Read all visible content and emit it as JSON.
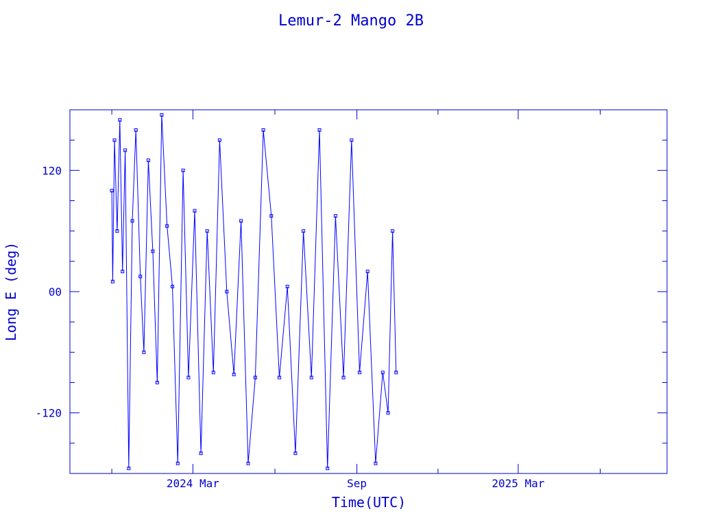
{
  "chart_data": {
    "type": "line",
    "title": "Lemur-2 Mango 2B",
    "xlabel": "Time(UTC)",
    "ylabel": "Long E (deg)",
    "ylim": [
      -180,
      180
    ],
    "xlim": [
      "2023-10-15",
      "2025-08-15"
    ],
    "x_ticks": [
      {
        "date": "2024-03-01",
        "label": "2024 Mar"
      },
      {
        "date": "2024-09-01",
        "label": "Sep"
      },
      {
        "date": "2025-03-01",
        "label": "2025 Mar"
      }
    ],
    "y_ticks": [
      {
        "value": 120,
        "label": "120"
      },
      {
        "value": 0,
        "label": "00"
      },
      {
        "value": -120,
        "label": "-120"
      }
    ],
    "data_range": [
      "2023-12-01",
      "2024-10-15"
    ],
    "marker": "square",
    "grid": false,
    "color": "#0000ff",
    "series": [
      {
        "x": [
          "2023-12-01",
          "2023-12-02",
          "2023-12-04",
          "2023-12-07",
          "2023-12-10",
          "2023-12-13",
          "2023-12-16",
          "2023-12-20",
          "2023-12-24",
          "2023-12-28",
          "2024-01-02",
          "2024-01-06",
          "2024-01-11",
          "2024-01-16",
          "2024-01-21",
          "2024-01-26",
          "2024-02-01",
          "2024-02-07",
          "2024-02-13",
          "2024-02-19",
          "2024-02-25",
          "2024-03-03",
          "2024-03-10",
          "2024-03-17",
          "2024-03-24",
          "2024-03-31",
          "2024-04-08",
          "2024-04-16",
          "2024-04-24",
          "2024-05-02",
          "2024-05-10",
          "2024-05-19",
          "2024-05-28",
          "2024-06-06",
          "2024-06-15",
          "2024-06-24",
          "2024-07-03",
          "2024-07-12",
          "2024-07-21",
          "2024-07-30",
          "2024-08-08",
          "2024-08-17",
          "2024-08-26",
          "2024-09-04",
          "2024-09-13",
          "2024-09-22",
          "2024-09-30",
          "2024-10-06",
          "2024-10-11",
          "2024-10-15"
        ],
        "y": [
          100,
          10,
          150,
          60,
          170,
          20,
          140,
          -175,
          70,
          160,
          15,
          -60,
          130,
          40,
          -90,
          175,
          65,
          5,
          -170,
          120,
          -85,
          80,
          -160,
          60,
          -80,
          150,
          0,
          -82,
          70,
          -170,
          -85,
          160,
          75,
          -85,
          5,
          -160,
          60,
          -85,
          160,
          -175,
          75,
          -85,
          150,
          -80,
          20,
          -170,
          -80,
          -120,
          60,
          -80
        ]
      }
    ]
  }
}
